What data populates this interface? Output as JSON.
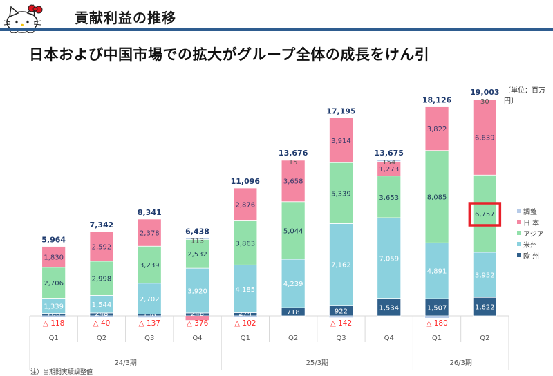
{
  "header": {
    "title": "貢献利益の推移",
    "logo": "hello-kitty-logo",
    "rule_color": "#2e5c8f"
  },
  "subtitle": "日本および中国市場での拡大がグループ全体の成長をけん引",
  "unit_label": "〔単位：百万円〕",
  "footnote": "注）当期間実績調整値",
  "highlight": {
    "period_index": 9,
    "segment": "アジア",
    "value_label": "6,757",
    "color": "#e8202a"
  },
  "chart_data": {
    "type": "bar",
    "stacked": true,
    "title": "貢献利益の推移",
    "ylabel": "",
    "unit": "百万円",
    "categories": [
      "Q1",
      "Q2",
      "Q3",
      "Q4",
      "Q1",
      "Q2",
      "Q3",
      "Q4",
      "Q1",
      "Q2"
    ],
    "fiscal_groups": [
      {
        "label": "24/3期",
        "count": 4
      },
      {
        "label": "25/3期",
        "count": 4
      },
      {
        "label": "26/3期",
        "count": 2
      }
    ],
    "series": [
      {
        "name": "欧州",
        "legend_label": "欧 州",
        "color": "#2f5f8a",
        "label_color": "#ffffff",
        "values": [
          206,
          248,
          158,
          248,
          274,
          718,
          922,
          1534,
          1507,
          1622
        ]
      },
      {
        "name": "米州",
        "legend_label": "米州",
        "color": "#8bd1de",
        "label_color": "#ffffff",
        "values": [
          1339,
          1544,
          2702,
          3920,
          4185,
          4239,
          7162,
          7059,
          4891,
          3952
        ]
      },
      {
        "name": "アジア",
        "legend_label": "アジア",
        "color": "#92e0aa",
        "label_color": "#1f3b5a",
        "values": [
          2706,
          2998,
          3239,
          2532,
          3863,
          5044,
          5339,
          3653,
          8085,
          6757
        ]
      },
      {
        "name": "日本",
        "legend_label": "日 本",
        "color": "#f487a2",
        "label_color": "#3a3a6a",
        "values": [
          1830,
          2592,
          2378,
          -376,
          2876,
          3658,
          3914,
          1273,
          3822,
          6639
        ]
      },
      {
        "name": "調整",
        "legend_label": "調整",
        "color": "#b7cbe8",
        "label_color": "#555555",
        "values": [
          -118,
          -40,
          -137,
          113,
          -102,
          15,
          -142,
          154,
          -180,
          30
        ]
      }
    ],
    "totals": [
      5964,
      7342,
      8341,
      6438,
      11096,
      13676,
      17195,
      13675,
      18126,
      19003
    ],
    "total_labels": [
      "5,964",
      "7,342",
      "8,341",
      "6,438",
      "11,096",
      "13,676",
      "17,195",
      "13,675",
      "18,126",
      "19,003"
    ],
    "negative_labels": [
      "△ 118",
      "△ 40",
      "△ 137",
      "△ 376",
      "△ 102",
      "",
      "△ 142",
      "",
      "△ 180",
      ""
    ],
    "segment_labels": {
      "欧州": [
        "206",
        "248",
        "158",
        "248",
        "274",
        "718",
        "922",
        "1,534",
        "1,507",
        "1,622"
      ],
      "米州": [
        "1,339",
        "1,544",
        "2,702",
        "3,920",
        "4,185",
        "4,239",
        "7,162",
        "7,059",
        "4,891",
        "3,952"
      ],
      "アジア": [
        "2,706",
        "2,998",
        "3,239",
        "2,532",
        "3,863",
        "5,044",
        "5,339",
        "3,653",
        "8,085",
        "6,757"
      ],
      "日本": [
        "1,830",
        "2,592",
        "2,378",
        "",
        "2,876",
        "3,658",
        "3,914",
        "1,273",
        "3,822",
        "6,639"
      ],
      "調整": [
        "",
        "",
        "",
        "113",
        "",
        "15",
        "",
        "154",
        "",
        "30"
      ]
    },
    "ylim": [
      -500,
      20000
    ],
    "grid": false,
    "legend_position": "right",
    "total_color": "#1f3b6e",
    "negative_color": "#ff2a2a"
  }
}
